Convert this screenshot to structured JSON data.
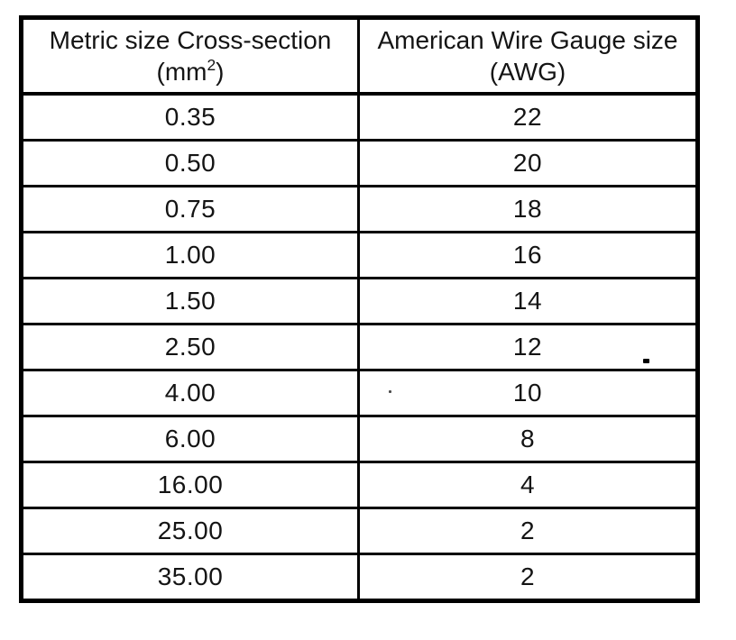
{
  "table": {
    "border_color": "#000000",
    "text_color": "#141414",
    "header": {
      "col1_line1": "Metric size Cross-section",
      "col1_unit_open": "(mm",
      "col1_unit_sup": "2",
      "col1_unit_close": ")",
      "col2_line1": "American Wire Gauge size",
      "col2_line2": "(AWG)"
    },
    "rows": [
      {
        "metric": "0.35",
        "awg": "22"
      },
      {
        "metric": "0.50",
        "awg": "20"
      },
      {
        "metric": "0.75",
        "awg": "18"
      },
      {
        "metric": "1.00",
        "awg": "16"
      },
      {
        "metric": "1.50",
        "awg": "14"
      },
      {
        "metric": "2.50",
        "awg": "12"
      },
      {
        "metric": "4.00",
        "awg": "10"
      },
      {
        "metric": "6.00",
        "awg": "8"
      },
      {
        "metric": "16.00",
        "awg": "4"
      },
      {
        "metric": "25.00",
        "awg": "2"
      },
      {
        "metric": "35.00",
        "awg": "2"
      }
    ]
  }
}
